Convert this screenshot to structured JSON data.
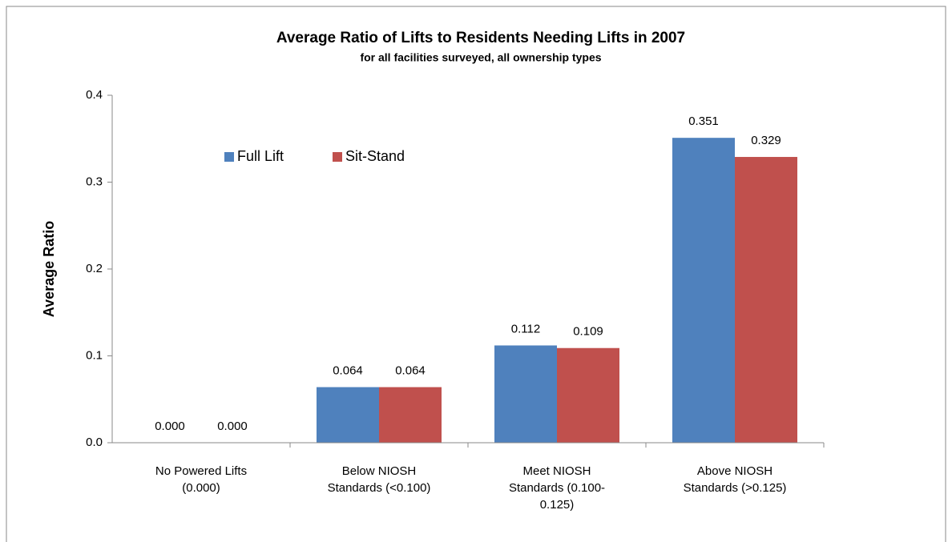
{
  "chart_data": {
    "type": "bar",
    "title": "Average Ratio of Lifts to Residents Needing Lifts in 2007",
    "subtitle": "for all facilities surveyed, all ownership types",
    "y_label": "Average Ratio",
    "categories": [
      "No Powered Lifts (0.000)",
      "Below NIOSH Standards (<0.100)",
      "Meet NIOSH Standards (0.100-0.125)",
      "Above NIOSH Standards (>0.125)"
    ],
    "series": [
      {
        "name": "Full Lift",
        "color": "#4f81bd",
        "values": [
          0,
          0.064,
          0.112,
          0.351
        ],
        "value_labels": [
          "0.000",
          "0.064",
          "0.112",
          "0.351"
        ]
      },
      {
        "name": "Sit-Stand",
        "color": "#c0504d",
        "values": [
          0,
          0.064,
          0.109,
          0.329
        ],
        "value_labels": [
          "0.000",
          "0.064",
          "0.109",
          "0.329"
        ]
      }
    ],
    "ylim": [
      0,
      0.4
    ],
    "yticks": [
      {
        "value": 0,
        "label": "0.0"
      },
      0.1,
      0.2,
      0.3,
      0.4
    ],
    "grid": false,
    "legend": "top-left"
  }
}
